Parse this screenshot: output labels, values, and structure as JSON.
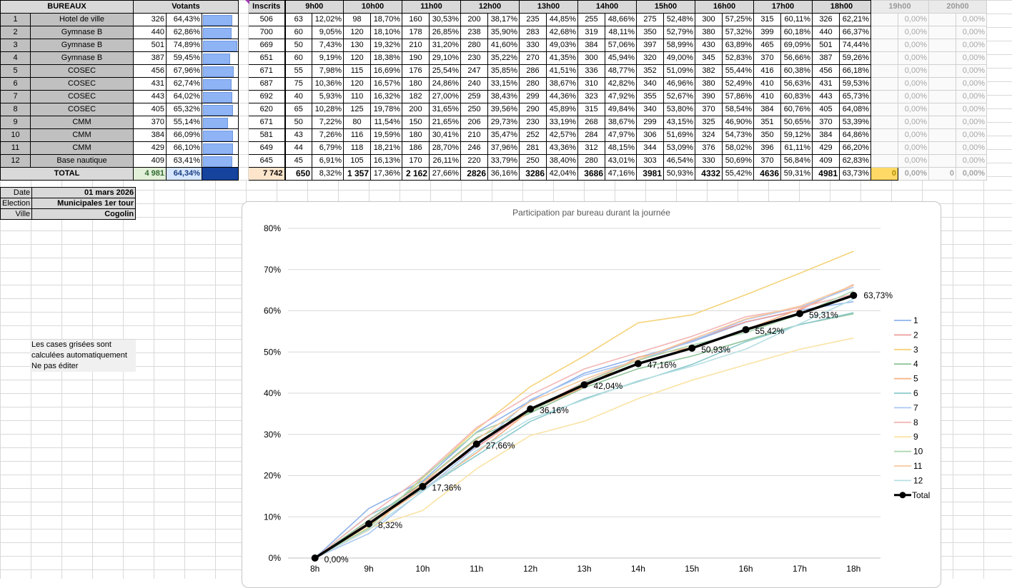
{
  "headers": {
    "bureaux": "BUREAUX",
    "votants": "Votants",
    "inscrits": "Inscrits",
    "hours": [
      "9h00",
      "10h00",
      "11h00",
      "12h00",
      "13h00",
      "14h00",
      "15h00",
      "16h00",
      "17h00",
      "18h00"
    ],
    "empty_hours": [
      "19h00",
      "20h00"
    ]
  },
  "rows": [
    {
      "n": "1",
      "bureau": "Hotel de ville",
      "votants": "326",
      "pct": "64,43%",
      "ratio": 0.6443,
      "inscrits": "506",
      "cells": [
        [
          "63",
          "12,02%"
        ],
        [
          "98",
          "18,70%"
        ],
        [
          "160",
          "30,53%"
        ],
        [
          "200",
          "38,17%"
        ],
        [
          "235",
          "44,85%"
        ],
        [
          "255",
          "48,66%"
        ],
        [
          "275",
          "52,48%"
        ],
        [
          "300",
          "57,25%"
        ],
        [
          "315",
          "60,11%"
        ],
        [
          "326",
          "62,21%"
        ]
      ]
    },
    {
      "n": "2",
      "bureau": "Gymnase B",
      "votants": "440",
      "pct": "62,86%",
      "ratio": 0.6286,
      "inscrits": "700",
      "cells": [
        [
          "60",
          "9,05%"
        ],
        [
          "120",
          "18,10%"
        ],
        [
          "178",
          "26,85%"
        ],
        [
          "238",
          "35,90%"
        ],
        [
          "283",
          "42,68%"
        ],
        [
          "319",
          "48,11%"
        ],
        [
          "350",
          "52,79%"
        ],
        [
          "380",
          "57,32%"
        ],
        [
          "399",
          "60,18%"
        ],
        [
          "440",
          "66,37%"
        ]
      ]
    },
    {
      "n": "3",
      "bureau": "Gymnase B",
      "votants": "501",
      "pct": "74,89%",
      "ratio": 0.7489,
      "inscrits": "669",
      "cells": [
        [
          "50",
          "7,43%"
        ],
        [
          "130",
          "19,32%"
        ],
        [
          "210",
          "31,20%"
        ],
        [
          "280",
          "41,60%"
        ],
        [
          "330",
          "49,03%"
        ],
        [
          "384",
          "57,06%"
        ],
        [
          "397",
          "58,99%"
        ],
        [
          "430",
          "63,89%"
        ],
        [
          "465",
          "69,09%"
        ],
        [
          "501",
          "74,44%"
        ]
      ]
    },
    {
      "n": "4",
      "bureau": "Gymnase B",
      "votants": "387",
      "pct": "59,45%",
      "ratio": 0.5945,
      "inscrits": "651",
      "cells": [
        [
          "60",
          "9,19%"
        ],
        [
          "120",
          "18,38%"
        ],
        [
          "190",
          "29,10%"
        ],
        [
          "230",
          "35,22%"
        ],
        [
          "270",
          "41,35%"
        ],
        [
          "300",
          "45,94%"
        ],
        [
          "320",
          "49,00%"
        ],
        [
          "345",
          "52,83%"
        ],
        [
          "370",
          "56,66%"
        ],
        [
          "387",
          "59,26%"
        ]
      ]
    },
    {
      "n": "5",
      "bureau": "COSEC",
      "votants": "456",
      "pct": "67,96%",
      "ratio": 0.6796,
      "inscrits": "671",
      "cells": [
        [
          "55",
          "7,98%"
        ],
        [
          "115",
          "16,69%"
        ],
        [
          "176",
          "25,54%"
        ],
        [
          "247",
          "35,85%"
        ],
        [
          "286",
          "41,51%"
        ],
        [
          "336",
          "48,77%"
        ],
        [
          "352",
          "51,09%"
        ],
        [
          "382",
          "55,44%"
        ],
        [
          "416",
          "60,38%"
        ],
        [
          "456",
          "66,18%"
        ]
      ]
    },
    {
      "n": "6",
      "bureau": "COSEC",
      "votants": "431",
      "pct": "62,74%",
      "ratio": 0.6274,
      "inscrits": "687",
      "cells": [
        [
          "75",
          "10,36%"
        ],
        [
          "120",
          "16,57%"
        ],
        [
          "180",
          "24,86%"
        ],
        [
          "240",
          "33,15%"
        ],
        [
          "280",
          "38,67%"
        ],
        [
          "310",
          "42,82%"
        ],
        [
          "340",
          "46,96%"
        ],
        [
          "380",
          "52,49%"
        ],
        [
          "410",
          "56,63%"
        ],
        [
          "431",
          "59,53%"
        ]
      ]
    },
    {
      "n": "7",
      "bureau": "COSEC",
      "votants": "443",
      "pct": "64,02%",
      "ratio": 0.6402,
      "inscrits": "692",
      "cells": [
        [
          "40",
          "5,93%"
        ],
        [
          "110",
          "16,32%"
        ],
        [
          "182",
          "27,00%"
        ],
        [
          "259",
          "38,43%"
        ],
        [
          "299",
          "44,36%"
        ],
        [
          "323",
          "47,92%"
        ],
        [
          "355",
          "52,67%"
        ],
        [
          "390",
          "57,86%"
        ],
        [
          "410",
          "60,83%"
        ],
        [
          "443",
          "65,73%"
        ]
      ]
    },
    {
      "n": "8",
      "bureau": "COSEC",
      "votants": "405",
      "pct": "65,32%",
      "ratio": 0.6532,
      "inscrits": "620",
      "cells": [
        [
          "65",
          "10,28%"
        ],
        [
          "125",
          "19,78%"
        ],
        [
          "200",
          "31,65%"
        ],
        [
          "250",
          "39,56%"
        ],
        [
          "290",
          "45,89%"
        ],
        [
          "315",
          "49,84%"
        ],
        [
          "340",
          "53,80%"
        ],
        [
          "370",
          "58,54%"
        ],
        [
          "384",
          "60,76%"
        ],
        [
          "405",
          "64,08%"
        ]
      ]
    },
    {
      "n": "9",
      "bureau": "CMM",
      "votants": "370",
      "pct": "55,14%",
      "ratio": 0.5514,
      "inscrits": "671",
      "cells": [
        [
          "50",
          "7,22%"
        ],
        [
          "80",
          "11,54%"
        ],
        [
          "150",
          "21,65%"
        ],
        [
          "206",
          "29,73%"
        ],
        [
          "230",
          "33,19%"
        ],
        [
          "268",
          "38,67%"
        ],
        [
          "299",
          "43,15%"
        ],
        [
          "325",
          "46,90%"
        ],
        [
          "351",
          "50,65%"
        ],
        [
          "370",
          "53,39%"
        ]
      ]
    },
    {
      "n": "10",
      "bureau": "CMM",
      "votants": "384",
      "pct": "66,09%",
      "ratio": 0.6609,
      "inscrits": "581",
      "cells": [
        [
          "43",
          "7,26%"
        ],
        [
          "116",
          "19,59%"
        ],
        [
          "180",
          "30,41%"
        ],
        [
          "210",
          "35,47%"
        ],
        [
          "252",
          "42,57%"
        ],
        [
          "284",
          "47,97%"
        ],
        [
          "306",
          "51,69%"
        ],
        [
          "324",
          "54,73%"
        ],
        [
          "350",
          "59,12%"
        ],
        [
          "384",
          "64,86%"
        ]
      ]
    },
    {
      "n": "11",
      "bureau": "CMM",
      "votants": "429",
      "pct": "66,10%",
      "ratio": 0.661,
      "inscrits": "649",
      "cells": [
        [
          "44",
          "6,79%"
        ],
        [
          "118",
          "18,21%"
        ],
        [
          "186",
          "28,70%"
        ],
        [
          "246",
          "37,96%"
        ],
        [
          "281",
          "43,36%"
        ],
        [
          "312",
          "48,15%"
        ],
        [
          "344",
          "53,09%"
        ],
        [
          "376",
          "58,02%"
        ],
        [
          "396",
          "61,11%"
        ],
        [
          "429",
          "66,20%"
        ]
      ]
    },
    {
      "n": "12",
      "bureau": "Base nautique",
      "votants": "409",
      "pct": "63,41%",
      "ratio": 0.6341,
      "inscrits": "645",
      "cells": [
        [
          "45",
          "6,91%"
        ],
        [
          "105",
          "16,13%"
        ],
        [
          "170",
          "26,11%"
        ],
        [
          "220",
          "33,79%"
        ],
        [
          "250",
          "38,40%"
        ],
        [
          "280",
          "43,01%"
        ],
        [
          "303",
          "46,54%"
        ],
        [
          "330",
          "50,69%"
        ],
        [
          "370",
          "56,84%"
        ],
        [
          "409",
          "62,83%"
        ]
      ]
    }
  ],
  "empty_pct": "0,00%",
  "total": {
    "label": "TOTAL",
    "votants": "4 981",
    "pct": "64,34%",
    "inscrits": "7 742",
    "cells": [
      [
        "650",
        "8,32%"
      ],
      [
        "1 357",
        "17,36%"
      ],
      [
        "2 162",
        "27,66%"
      ],
      [
        "2826",
        "36,16%"
      ],
      [
        "3286",
        "42,04%"
      ],
      [
        "3686",
        "47,16%"
      ],
      [
        "3981",
        "50,93%"
      ],
      [
        "4332",
        "55,42%"
      ],
      [
        "4636",
        "59,31%"
      ],
      [
        "4981",
        "63,73%"
      ]
    ],
    "extra": [
      [
        "0",
        "0,00%"
      ],
      [
        "0",
        "0,00%"
      ]
    ]
  },
  "meta": {
    "date_label": "Date",
    "date_value": "01 mars 2026",
    "election_label": "Election",
    "election_value": "Municipales 1er tour",
    "ville_label": "Ville",
    "ville_value": "Cogolin"
  },
  "note": [
    "Les cases grisées sont",
    "calculées automatiquement",
    "Ne pas éditer"
  ],
  "chart_data": {
    "type": "line",
    "title": "Participation par bureau durant la journée",
    "categories": [
      "8h",
      "9h",
      "10h",
      "11h",
      "12h",
      "13h",
      "14h",
      "15h",
      "16h",
      "17h",
      "18h"
    ],
    "ylim": [
      0,
      80
    ],
    "yticks": [
      0,
      10,
      20,
      30,
      40,
      50,
      60,
      70,
      80
    ],
    "ytick_labels": [
      "0%",
      "10%",
      "20%",
      "30%",
      "40%",
      "50%",
      "60%",
      "70%",
      "80%"
    ],
    "grid": true,
    "legend": "right",
    "series": [
      {
        "name": "1",
        "color": "#8fb2ea",
        "values": [
          0,
          12.02,
          18.7,
          30.53,
          38.17,
          44.85,
          48.66,
          52.48,
          57.25,
          60.11,
          62.21
        ]
      },
      {
        "name": "2",
        "color": "#ef9c9c",
        "values": [
          0,
          9.05,
          18.1,
          26.85,
          35.9,
          42.68,
          48.11,
          52.79,
          57.32,
          60.18,
          66.37
        ]
      },
      {
        "name": "3",
        "color": "#f5d37a",
        "values": [
          0,
          7.43,
          19.32,
          31.2,
          41.6,
          49.03,
          57.06,
          58.99,
          63.89,
          69.09,
          74.44
        ]
      },
      {
        "name": "4",
        "color": "#8fc49a",
        "values": [
          0,
          9.19,
          18.38,
          29.1,
          35.22,
          41.35,
          45.94,
          49.0,
          52.83,
          56.66,
          59.26
        ]
      },
      {
        "name": "5",
        "color": "#f4b183",
        "values": [
          0,
          7.98,
          16.69,
          25.54,
          35.85,
          41.51,
          48.77,
          51.09,
          55.44,
          60.38,
          66.18
        ]
      },
      {
        "name": "6",
        "color": "#8cc9cc",
        "values": [
          0,
          10.36,
          16.57,
          24.86,
          33.15,
          38.67,
          42.82,
          46.96,
          52.49,
          56.63,
          59.53
        ]
      },
      {
        "name": "7",
        "color": "#a9c7f3",
        "values": [
          0,
          5.93,
          16.32,
          27.0,
          38.43,
          44.36,
          47.92,
          52.67,
          57.86,
          60.83,
          65.73
        ]
      },
      {
        "name": "8",
        "color": "#f3b6b6",
        "values": [
          0,
          10.28,
          19.78,
          31.65,
          39.56,
          45.89,
          49.84,
          53.8,
          58.54,
          60.76,
          64.08
        ]
      },
      {
        "name": "9",
        "color": "#fae3a5",
        "values": [
          0,
          7.22,
          11.54,
          21.65,
          29.73,
          33.19,
          38.67,
          43.15,
          46.9,
          50.65,
          53.39
        ]
      },
      {
        "name": "10",
        "color": "#a8d4ac",
        "values": [
          0,
          7.26,
          19.59,
          30.41,
          35.47,
          42.57,
          47.97,
          51.69,
          54.73,
          59.12,
          64.86
        ]
      },
      {
        "name": "11",
        "color": "#f8ca9e",
        "values": [
          0,
          6.79,
          18.21,
          28.7,
          37.96,
          43.36,
          48.15,
          53.09,
          58.02,
          61.11,
          66.2
        ]
      },
      {
        "name": "12",
        "color": "#b7dfe3",
        "values": [
          0,
          6.91,
          16.13,
          26.11,
          33.79,
          38.4,
          43.01,
          46.54,
          50.69,
          56.84,
          62.83
        ]
      },
      {
        "name": "Total",
        "color": "#000000",
        "values": [
          0,
          8.32,
          17.36,
          27.66,
          36.16,
          42.04,
          47.16,
          50.93,
          55.42,
          59.31,
          63.73
        ],
        "labels": [
          "0,00%",
          "8,32%",
          "17,36%",
          "27,66%",
          "36,16%",
          "42,04%",
          "47,16%",
          "50,93%",
          "55,42%",
          "59,31%",
          "63,73%"
        ]
      }
    ]
  }
}
